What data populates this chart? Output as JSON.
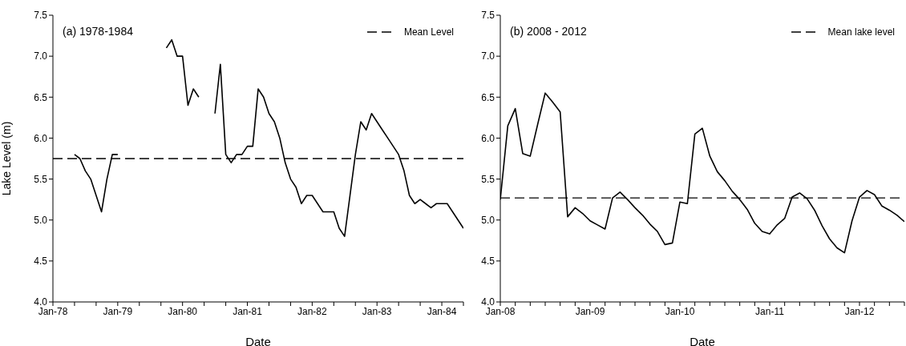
{
  "chart_data": [
    {
      "type": "line",
      "title": "(a) 1978-1984",
      "xlabel": "Date",
      "ylabel": "Lake Level (m)",
      "legend": "top right",
      "x": [
        "1978-05",
        "1978-06",
        "1978-07",
        "1978-08",
        "1978-09",
        "1978-10",
        "1978-11",
        "1978-12",
        "1979-01",
        "1979-02",
        "1979-03",
        "1979-04",
        "1979-05",
        "1979-06",
        "1979-07",
        "1979-08",
        "1979-09",
        "1979-10",
        "1979-11",
        "1979-12",
        "1980-01",
        "1980-02",
        "1980-03",
        "1980-04",
        "1980-05",
        "1980-06",
        "1980-07",
        "1980-08",
        "1980-09",
        "1980-10",
        "1980-11",
        "1980-12",
        "1981-01",
        "1981-02",
        "1981-03",
        "1981-04",
        "1981-05",
        "1981-06",
        "1981-07",
        "1981-08",
        "1981-09",
        "1981-10",
        "1981-11",
        "1981-12",
        "1982-01",
        "1982-02",
        "1982-03",
        "1982-04",
        "1982-05",
        "1982-06",
        "1982-07",
        "1982-08",
        "1982-09",
        "1982-10",
        "1982-11",
        "1982-12",
        "1983-01",
        "1983-02",
        "1983-03",
        "1983-04",
        "1983-05",
        "1983-06",
        "1983-07",
        "1983-08",
        "1983-09",
        "1983-10",
        "1983-11",
        "1983-12",
        "1984-01",
        "1984-02",
        "1984-03",
        "1984-04",
        "1984-05"
      ],
      "series": [
        {
          "color": "#000000",
          "values": [
            5.8,
            5.75,
            5.6,
            5.5,
            5.3,
            5.1,
            5.5,
            5.8,
            5.8,
            null,
            null,
            null,
            null,
            null,
            null,
            null,
            null,
            7.1,
            7.2,
            7.0,
            7.0,
            6.4,
            6.6,
            6.5,
            null,
            null,
            6.3,
            6.9,
            5.8,
            5.7,
            5.8,
            5.8,
            5.9,
            5.9,
            6.6,
            6.5,
            6.3,
            6.2,
            6.0,
            5.7,
            5.5,
            5.4,
            5.2,
            5.3,
            5.3,
            5.2,
            5.1,
            5.1,
            5.1,
            4.9,
            4.8,
            5.3,
            5.8,
            6.2,
            6.1,
            6.3,
            6.2,
            6.1,
            6.0,
            5.9,
            5.8,
            5.6,
            5.3,
            5.2,
            5.25,
            5.2,
            5.15,
            5.2,
            5.2,
            5.2,
            5.1,
            5.0,
            4.9
          ]
        }
      ],
      "xlim": [
        "1978-01",
        "1984-05"
      ],
      "xticks": [
        {
          "value": "1978-01",
          "label": "Jan-78"
        },
        {
          "value": "1978-05",
          "label": null
        },
        {
          "value": "1978-09",
          "label": null
        },
        {
          "value": "1979-01",
          "label": "Jan-79"
        },
        {
          "value": "1979-05",
          "label": null
        },
        {
          "value": "1979-09",
          "label": null
        },
        {
          "value": "1980-01",
          "label": "Jan-80"
        },
        {
          "value": "1980-05",
          "label": null
        },
        {
          "value": "1980-09",
          "label": null
        },
        {
          "value": "1981-01",
          "label": "Jan-81"
        },
        {
          "value": "1981-05",
          "label": null
        },
        {
          "value": "1981-09",
          "label": null
        },
        {
          "value": "1982-01",
          "label": "Jan-82"
        },
        {
          "value": "1982-05",
          "label": null
        },
        {
          "value": "1982-09",
          "label": null
        },
        {
          "value": "1983-01",
          "label": "Jan-83"
        },
        {
          "value": "1983-05",
          "label": null
        },
        {
          "value": "1983-09",
          "label": null
        },
        {
          "value": "1984-01",
          "label": "Jan-84"
        },
        {
          "value": "1984-05",
          "label": null
        }
      ],
      "ylim": [
        4.0,
        7.5
      ],
      "yticks": [
        {
          "value": 4,
          "label": "4.0"
        },
        {
          "value": 4.5,
          "label": "4.5"
        },
        {
          "value": 5,
          "label": "5.0"
        },
        {
          "value": 5.5,
          "label": "5.5"
        },
        {
          "value": 6,
          "label": "6.0"
        },
        {
          "value": 6.5,
          "label": "6.5"
        },
        {
          "value": 7,
          "label": "7.0"
        },
        {
          "value": 7.5,
          "label": "7.5"
        }
      ],
      "ref_lines": [
        {
          "axis": "y",
          "value": 5.75,
          "label": "Mean Level",
          "color": "#000000",
          "line_style": "dashed"
        }
      ]
    },
    {
      "type": "line",
      "title": "(b) 2008 - 2012",
      "xlabel": "Date",
      "legend": "top right",
      "x": [
        "2008-01",
        "2008-02",
        "2008-03",
        "2008-04",
        "2008-05",
        "2008-06",
        "2008-07",
        "2008-08",
        "2008-09",
        "2008-10",
        "2008-11",
        "2008-12",
        "2009-01",
        "2009-02",
        "2009-03",
        "2009-04",
        "2009-05",
        "2009-06",
        "2009-07",
        "2009-08",
        "2009-09",
        "2009-10",
        "2009-11",
        "2009-12",
        "2010-01",
        "2010-02",
        "2010-03",
        "2010-04",
        "2010-05",
        "2010-06",
        "2010-07",
        "2010-08",
        "2010-09",
        "2010-10",
        "2010-11",
        "2010-12",
        "2011-01",
        "2011-02",
        "2011-03",
        "2011-04",
        "2011-05",
        "2011-06",
        "2011-07",
        "2011-08",
        "2011-09",
        "2011-10",
        "2011-11",
        "2011-12",
        "2012-01",
        "2012-02",
        "2012-03",
        "2012-04",
        "2012-05",
        "2012-06",
        "2012-07"
      ],
      "series": [
        {
          "color": "#000000",
          "values": [
            5.25,
            6.15,
            6.36,
            5.81,
            5.78,
            6.17,
            6.55,
            6.44,
            6.32,
            5.04,
            5.15,
            5.08,
            4.99,
            4.94,
            4.89,
            5.27,
            5.34,
            5.25,
            5.15,
            5.06,
            4.95,
            4.86,
            4.7,
            4.72,
            5.22,
            5.2,
            6.05,
            6.12,
            5.78,
            5.59,
            5.48,
            5.35,
            5.25,
            5.13,
            4.96,
            4.86,
            4.83,
            4.94,
            5.02,
            5.28,
            5.33,
            5.26,
            5.12,
            4.93,
            4.77,
            4.66,
            4.6,
            4.99,
            5.28,
            5.36,
            5.31,
            5.17,
            5.12,
            5.06,
            4.98
          ]
        }
      ],
      "xlim": [
        "2008-01",
        "2012-07"
      ],
      "xticks": [
        {
          "value": "2008-01",
          "label": "Jan-08"
        },
        {
          "value": "2008-03",
          "label": null
        },
        {
          "value": "2008-05",
          "label": null
        },
        {
          "value": "2008-07",
          "label": null
        },
        {
          "value": "2008-09",
          "label": null
        },
        {
          "value": "2008-11",
          "label": null
        },
        {
          "value": "2009-01",
          "label": "Jan-09"
        },
        {
          "value": "2009-03",
          "label": null
        },
        {
          "value": "2009-05",
          "label": null
        },
        {
          "value": "2009-07",
          "label": null
        },
        {
          "value": "2009-09",
          "label": null
        },
        {
          "value": "2009-11",
          "label": null
        },
        {
          "value": "2010-01",
          "label": "Jan-10"
        },
        {
          "value": "2010-03",
          "label": null
        },
        {
          "value": "2010-05",
          "label": null
        },
        {
          "value": "2010-07",
          "label": null
        },
        {
          "value": "2010-09",
          "label": null
        },
        {
          "value": "2010-11",
          "label": null
        },
        {
          "value": "2011-01",
          "label": "Jan-11"
        },
        {
          "value": "2011-03",
          "label": null
        },
        {
          "value": "2011-05",
          "label": null
        },
        {
          "value": "2011-07",
          "label": null
        },
        {
          "value": "2011-09",
          "label": null
        },
        {
          "value": "2011-11",
          "label": null
        },
        {
          "value": "2012-01",
          "label": "Jan-12"
        },
        {
          "value": "2012-03",
          "label": null
        },
        {
          "value": "2012-05",
          "label": null
        },
        {
          "value": "2012-07",
          "label": null
        }
      ],
      "ylim": [
        4.0,
        7.5
      ],
      "yticks": [
        {
          "value": 4,
          "label": "4.0"
        },
        {
          "value": 4.5,
          "label": "4.5"
        },
        {
          "value": 5,
          "label": "5.0"
        },
        {
          "value": 5.5,
          "label": "5.5"
        },
        {
          "value": 6,
          "label": "6.0"
        },
        {
          "value": 6.5,
          "label": "6.5"
        },
        {
          "value": 7,
          "label": "7.0"
        },
        {
          "value": 7.5,
          "label": "7.5"
        }
      ],
      "ref_lines": [
        {
          "axis": "y",
          "value": 5.27,
          "label": "Mean lake level",
          "color": "#000000",
          "line_style": "dashed"
        }
      ]
    }
  ]
}
